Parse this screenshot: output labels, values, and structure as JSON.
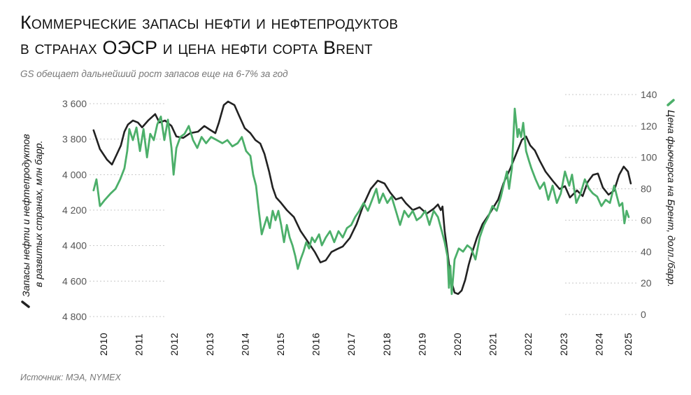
{
  "header": {
    "title_line1": "Коммерческие запасы нефти и нефтепродуктов",
    "title_line2": "в странах ОЭСР и цена нефти сорта Brent",
    "subtitle": "GS обещает дальнейший рост запасов еще на 6-7% за год"
  },
  "footer": {
    "source": "Источник: МЭА, NYMEX"
  },
  "chart_data": {
    "type": "line",
    "title": "Коммерческие запасы нефти и нефтепродуктов в странах ОЭСР и цена нефти сорта Brent",
    "ylabel_left_line1": "Запасы нефти и нефтепродуктов",
    "ylabel_left_line2": "в развитых странах, млн барр.",
    "ylabel_right": "Цена фьючерса на Брент, долл./барр.",
    "y_left": {
      "min": 3600,
      "max": 4800,
      "inverted": true,
      "ticks": [
        "3 600",
        "3 800",
        "4 000",
        "4 200",
        "4 400",
        "4 600",
        "4 800"
      ],
      "tick_values": [
        3600,
        3800,
        4000,
        4200,
        4400,
        4600,
        4800
      ]
    },
    "y_right": {
      "min": 0,
      "max": 140,
      "ticks": [
        "140",
        "120",
        "100",
        "80",
        "60",
        "40",
        "20",
        "0"
      ],
      "tick_values": [
        140,
        120,
        100,
        80,
        60,
        40,
        20,
        0
      ]
    },
    "x_ticks": [
      "2010",
      "2011",
      "2012",
      "2013",
      "2014",
      "2015",
      "2016",
      "2017",
      "2018",
      "2019",
      "2020",
      "2021",
      "2022",
      "2023",
      "2024",
      "2025"
    ],
    "grid": "dotted horizontal",
    "colors": {
      "inventories": "#222222",
      "brent": "#4caf6a",
      "grid": "#c8c8c8"
    },
    "series": [
      {
        "name": "Запасы нефти и нефтепродуктов (OECD)",
        "axis": "left",
        "x": [
          2009.72,
          2009.9,
          2010.1,
          2010.24,
          2010.36,
          2010.49,
          2010.59,
          2010.69,
          2010.83,
          2010.97,
          2011.09,
          2011.26,
          2011.46,
          2011.58,
          2011.74,
          2011.92,
          2012.06,
          2012.25,
          2012.45,
          2012.67,
          2012.85,
          2013.0,
          2013.16,
          2013.26,
          2013.4,
          2013.52,
          2013.7,
          2013.83,
          2013.99,
          2014.15,
          2014.29,
          2014.43,
          2014.55,
          2014.68,
          2014.78,
          2014.88,
          2015.02,
          2015.18,
          2015.38,
          2015.57,
          2015.77,
          2015.97,
          2016.13,
          2016.28,
          2016.44,
          2016.6,
          2016.76,
          2016.96,
          2017.15,
          2017.35,
          2017.55,
          2017.75,
          2017.94,
          2018.1,
          2018.26,
          2018.42,
          2018.54,
          2018.74,
          2018.93,
          2019.13,
          2019.33,
          2019.45,
          2019.53,
          2019.58,
          2019.64,
          2019.72,
          2019.82,
          2019.92,
          2020.02,
          2020.12,
          2020.22,
          2020.32,
          2020.42,
          2020.55,
          2020.71,
          2020.91,
          2021.15,
          2021.3,
          2021.5,
          2021.7,
          2021.82,
          2021.94,
          2022.06,
          2022.19,
          2022.33,
          2022.49,
          2022.69,
          2022.89,
          2023.04,
          2023.18,
          2023.38,
          2023.54,
          2023.68,
          2023.83,
          2023.97,
          2024.11,
          2024.27,
          2024.43,
          2024.57,
          2024.7,
          2024.82,
          2024.9
        ],
        "values": [
          3750,
          3856,
          3916,
          3943,
          3892,
          3836,
          3758,
          3718,
          3695,
          3706,
          3734,
          3695,
          3659,
          3706,
          3695,
          3726,
          3785,
          3793,
          3766,
          3758,
          3726,
          3746,
          3766,
          3706,
          3608,
          3588,
          3608,
          3667,
          3738,
          3766,
          3805,
          3825,
          3884,
          3983,
          4073,
          4129,
          4160,
          4200,
          4239,
          4318,
          4377,
          4436,
          4495,
          4483,
          4436,
          4420,
          4405,
          4357,
          4279,
          4168,
          4081,
          4034,
          4050,
          4101,
          4140,
          4129,
          4160,
          4200,
          4184,
          4220,
          4192,
          4168,
          4200,
          4180,
          4318,
          4436,
          4594,
          4665,
          4673,
          4653,
          4594,
          4507,
          4436,
          4357,
          4279,
          4220,
          4141,
          4050,
          3963,
          3864,
          3805,
          3785,
          3836,
          3864,
          3923,
          3983,
          4034,
          4081,
          4065,
          4129,
          4089,
          4121,
          4042,
          4002,
          3994,
          4073,
          4113,
          4089,
          4002,
          3955,
          3983,
          4050
        ]
      },
      {
        "name": "Цена фьючерса на Брент",
        "axis": "right",
        "x": [
          2009.72,
          2009.8,
          2009.9,
          2010.04,
          2010.2,
          2010.34,
          2010.47,
          2010.59,
          2010.67,
          2010.73,
          2010.83,
          2010.93,
          2011.03,
          2011.13,
          2011.23,
          2011.32,
          2011.42,
          2011.52,
          2011.62,
          2011.72,
          2011.82,
          2011.92,
          2011.98,
          2012.06,
          2012.17,
          2012.29,
          2012.41,
          2012.53,
          2012.65,
          2012.77,
          2012.9,
          2013.04,
          2013.2,
          2013.36,
          2013.5,
          2013.64,
          2013.79,
          2013.91,
          2014.03,
          2014.15,
          2014.23,
          2014.31,
          2014.39,
          2014.47,
          2014.55,
          2014.62,
          2014.7,
          2014.78,
          2014.86,
          2014.94,
          2015.02,
          2015.1,
          2015.18,
          2015.26,
          2015.34,
          2015.42,
          2015.49,
          2015.57,
          2015.65,
          2015.73,
          2015.81,
          2015.89,
          2015.97,
          2016.09,
          2016.17,
          2016.28,
          2016.4,
          2016.52,
          2016.64,
          2016.76,
          2016.88,
          2017.0,
          2017.11,
          2017.23,
          2017.35,
          2017.47,
          2017.59,
          2017.71,
          2017.79,
          2017.9,
          2018.02,
          2018.14,
          2018.26,
          2018.38,
          2018.5,
          2018.62,
          2018.74,
          2018.85,
          2018.97,
          2019.09,
          2019.21,
          2019.33,
          2019.45,
          2019.56,
          2019.64,
          2019.72,
          2019.76,
          2019.8,
          2019.84,
          2019.92,
          2020.04,
          2020.16,
          2020.28,
          2020.39,
          2020.51,
          2020.63,
          2020.75,
          2020.87,
          2020.99,
          2021.11,
          2021.23,
          2021.3,
          2021.4,
          2021.46,
          2021.54,
          2021.62,
          2021.7,
          2021.74,
          2021.8,
          2021.86,
          2021.94,
          2022.02,
          2022.09,
          2022.21,
          2022.33,
          2022.45,
          2022.57,
          2022.69,
          2022.81,
          2022.92,
          2023.04,
          2023.16,
          2023.24,
          2023.36,
          2023.48,
          2023.6,
          2023.72,
          2023.83,
          2023.95,
          2024.07,
          2024.19,
          2024.31,
          2024.43,
          2024.51,
          2024.58,
          2024.66,
          2024.72,
          2024.78,
          2024.84
        ],
        "values": [
          79,
          86,
          69,
          73,
          77,
          80,
          86,
          93,
          104,
          118,
          111,
          119,
          104,
          118,
          100,
          115,
          111,
          121,
          126,
          111,
          124,
          106,
          89,
          106,
          113,
          115,
          120,
          111,
          106,
          113,
          109,
          113,
          111,
          109,
          111,
          107,
          109,
          113,
          104,
          101,
          89,
          82,
          66,
          51,
          57,
          62,
          55,
          66,
          60,
          66,
          57,
          46,
          57,
          49,
          44,
          37,
          29,
          35,
          40,
          46,
          42,
          49,
          46,
          51,
          44,
          49,
          53,
          46,
          53,
          49,
          55,
          57,
          62,
          66,
          71,
          66,
          73,
          80,
          71,
          77,
          71,
          75,
          66,
          57,
          66,
          62,
          66,
          60,
          62,
          66,
          57,
          66,
          62,
          53,
          46,
          37,
          17,
          31,
          13,
          35,
          42,
          40,
          44,
          42,
          35,
          49,
          57,
          62,
          69,
          66,
          75,
          82,
          91,
          80,
          93,
          131,
          113,
          118,
          113,
          122,
          104,
          98,
          93,
          86,
          80,
          84,
          73,
          82,
          71,
          77,
          91,
          82,
          89,
          71,
          77,
          86,
          80,
          77,
          75,
          69,
          73,
          71,
          82,
          75,
          69,
          71,
          58,
          66,
          62
        ]
      }
    ]
  }
}
